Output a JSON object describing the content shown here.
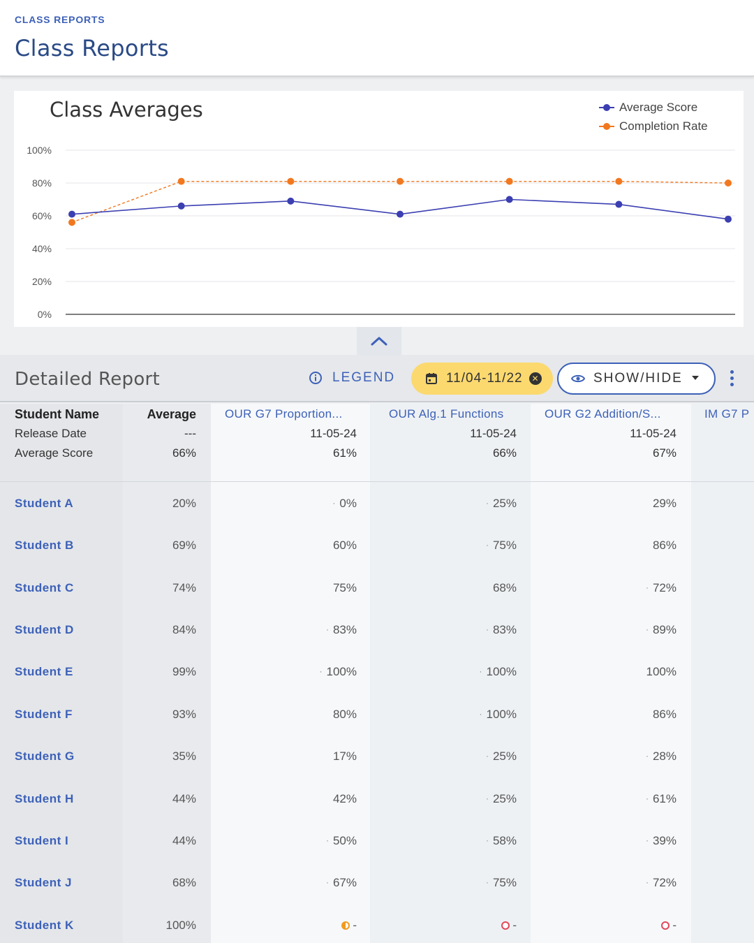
{
  "header": {
    "breadcrumb": "CLASS REPORTS",
    "title": "Class Reports"
  },
  "chart": {
    "collapse_icon": "chevron-up-icon"
  },
  "chart_data": {
    "type": "line",
    "title": "Class Averages",
    "x": [
      "1",
      "2",
      "3",
      "4",
      "5",
      "6",
      "7"
    ],
    "ylim": [
      0,
      100
    ],
    "yticks": [
      "0%",
      "20%",
      "40%",
      "60%",
      "80%",
      "100%"
    ],
    "grid": true,
    "legend_position": "top-right",
    "series": [
      {
        "name": "Average Score",
        "color": "#3b3fb1",
        "style": "solid",
        "values": [
          61,
          66,
          69,
          61,
          70,
          67,
          58
        ]
      },
      {
        "name": "Completion Rate",
        "color": "#f2781f",
        "style": "dashed",
        "values": [
          56,
          81,
          81,
          81,
          81,
          81,
          80
        ]
      }
    ]
  },
  "report": {
    "title": "Detailed Report",
    "legend_label": "LEGEND",
    "date_range": "11/04-11/22",
    "showhide_label": "SHOW/HIDE",
    "colors": {
      "accent": "#3d61b8",
      "chip": "#fbd96f"
    }
  },
  "table": {
    "row_labels": [
      "Student Name",
      "Release Date",
      "Average Score"
    ],
    "average_header": [
      "Average",
      "---",
      "66%"
    ],
    "assignments": [
      {
        "title": "OUR G7 Proportion...",
        "release": "11-05-24",
        "avg": "61%"
      },
      {
        "title": "OUR Alg.1 Functions",
        "release": "11-05-24",
        "avg": "66%"
      },
      {
        "title": "OUR G2 Addition/S...",
        "release": "11-05-24",
        "avg": "67%"
      },
      {
        "title": "IM G7 P",
        "release": "",
        "avg": ""
      }
    ],
    "students": [
      {
        "name": "Student A",
        "average": "20%",
        "scores": [
          "0%",
          "25%",
          "29%"
        ],
        "dots": [
          true,
          true,
          false
        ]
      },
      {
        "name": "Student B",
        "average": "69%",
        "scores": [
          "60%",
          "75%",
          "86%"
        ],
        "dots": [
          false,
          true,
          false
        ]
      },
      {
        "name": "Student C",
        "average": "74%",
        "scores": [
          "75%",
          "68%",
          "72%"
        ],
        "dots": [
          false,
          false,
          true
        ]
      },
      {
        "name": "Student D",
        "average": "84%",
        "scores": [
          "83%",
          "83%",
          "89%"
        ],
        "dots": [
          true,
          true,
          true
        ]
      },
      {
        "name": "Student E",
        "average": "99%",
        "scores": [
          "100%",
          "100%",
          "100%"
        ],
        "dots": [
          true,
          true,
          false
        ]
      },
      {
        "name": "Student F",
        "average": "93%",
        "scores": [
          "80%",
          "100%",
          "86%"
        ],
        "dots": [
          false,
          true,
          false
        ]
      },
      {
        "name": "Student G",
        "average": "35%",
        "scores": [
          "17%",
          "25%",
          "28%"
        ],
        "dots": [
          false,
          true,
          true
        ]
      },
      {
        "name": "Student H",
        "average": "44%",
        "scores": [
          "42%",
          "25%",
          "61%"
        ],
        "dots": [
          false,
          true,
          true
        ]
      },
      {
        "name": "Student I",
        "average": "44%",
        "scores": [
          "50%",
          "58%",
          "39%"
        ],
        "dots": [
          true,
          true,
          true
        ]
      },
      {
        "name": "Student J",
        "average": "68%",
        "scores": [
          "67%",
          "75%",
          "72%"
        ],
        "dots": [
          true,
          true,
          true
        ]
      },
      {
        "name": "Student K",
        "average": "100%",
        "scores": [
          "-",
          "-",
          "-"
        ],
        "dots": [
          false,
          false,
          false
        ],
        "status_icons": [
          "half-circle-icon",
          "open-circle-icon",
          "open-circle-icon"
        ]
      }
    ]
  }
}
